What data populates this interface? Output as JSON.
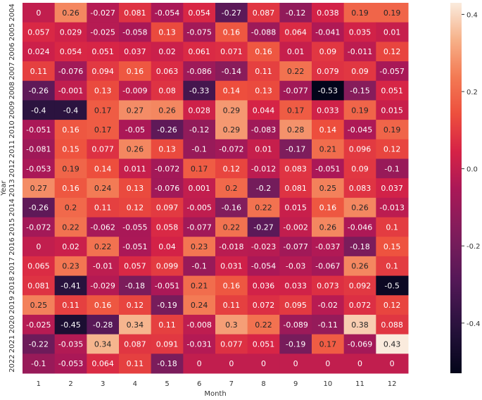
{
  "chart_data": {
    "type": "heatmap",
    "title": "",
    "xlabel": "Month",
    "ylabel": "Year",
    "x_categories": [
      "1",
      "2",
      "3",
      "4",
      "5",
      "6",
      "7",
      "8",
      "9",
      "10",
      "11",
      "12"
    ],
    "y_categories": [
      "2004",
      "2005",
      "2006",
      "2007",
      "2008",
      "2009",
      "2010",
      "2011",
      "2012",
      "2013",
      "2014",
      "2015",
      "2016",
      "2017",
      "2018",
      "2019",
      "2020",
      "2021",
      "2022"
    ],
    "values": [
      [
        "0",
        "0.26",
        "-0.027",
        "0.081",
        "-0.054",
        "0.054",
        "-0.27",
        "0.087",
        "-0.12",
        "0.038",
        "0.19",
        "0.19"
      ],
      [
        "0.057",
        "0.029",
        "-0.025",
        "-0.058",
        "0.13",
        "-0.075",
        "0.16",
        "-0.088",
        "0.064",
        "-0.041",
        "0.035",
        "0.01"
      ],
      [
        "0.024",
        "0.054",
        "0.051",
        "0.037",
        "0.02",
        "0.061",
        "0.071",
        "0.16",
        "0.01",
        "0.09",
        "-0.011",
        "0.12"
      ],
      [
        "0.11",
        "-0.076",
        "0.094",
        "0.16",
        "0.063",
        "-0.086",
        "-0.14",
        "0.11",
        "0.22",
        "0.079",
        "0.09",
        "-0.057"
      ],
      [
        "-0.26",
        "-0.001",
        "0.13",
        "-0.009",
        "0.08",
        "-0.33",
        "0.14",
        "0.13",
        "-0.077",
        "-0.53",
        "-0.15",
        "0.051"
      ],
      [
        "-0.4",
        "-0.4",
        "0.17",
        "0.27",
        "0.26",
        "0.028",
        "0.29",
        "0.044",
        "0.17",
        "0.033",
        "0.19",
        "0.015"
      ],
      [
        "-0.051",
        "0.16",
        "0.17",
        "-0.05",
        "-0.26",
        "-0.12",
        "0.29",
        "-0.083",
        "0.28",
        "0.14",
        "-0.045",
        "0.19"
      ],
      [
        "-0.081",
        "0.15",
        "0.077",
        "0.26",
        "0.13",
        "-0.1",
        "-0.072",
        "0.01",
        "-0.17",
        "0.21",
        "0.096",
        "0.12"
      ],
      [
        "-0.053",
        "0.19",
        "0.14",
        "0.011",
        "-0.072",
        "0.17",
        "0.12",
        "-0.012",
        "0.083",
        "-0.051",
        "0.09",
        "-0.1"
      ],
      [
        "0.27",
        "0.16",
        "0.24",
        "0.13",
        "-0.076",
        "0.001",
        "0.2",
        "-0.2",
        "0.081",
        "0.25",
        "0.083",
        "0.037"
      ],
      [
        "-0.26",
        "0.2",
        "0.11",
        "0.12",
        "0.097",
        "-0.005",
        "-0.16",
        "0.22",
        "0.015",
        "0.16",
        "0.26",
        "-0.013"
      ],
      [
        "-0.072",
        "0.22",
        "-0.062",
        "-0.055",
        "0.058",
        "-0.077",
        "0.22",
        "-0.27",
        "-0.002",
        "0.26",
        "-0.046",
        "0.1"
      ],
      [
        "0",
        "0.02",
        "0.22",
        "-0.051",
        "0.04",
        "0.23",
        "-0.018",
        "-0.023",
        "-0.077",
        "-0.037",
        "-0.18",
        "0.15"
      ],
      [
        "0.065",
        "0.23",
        "-0.01",
        "0.057",
        "0.099",
        "-0.1",
        "0.031",
        "-0.054",
        "-0.03",
        "-0.067",
        "0.26",
        "0.1"
      ],
      [
        "0.081",
        "-0.41",
        "-0.029",
        "-0.18",
        "-0.051",
        "0.21",
        "0.16",
        "0.036",
        "0.033",
        "0.073",
        "0.092",
        "-0.5"
      ],
      [
        "0.25",
        "0.11",
        "0.16",
        "0.12",
        "-0.19",
        "0.24",
        "0.11",
        "0.072",
        "0.095",
        "-0.02",
        "0.072",
        "0.12"
      ],
      [
        "-0.025",
        "-0.45",
        "-0.28",
        "0.34",
        "0.11",
        "-0.008",
        "0.3",
        "0.22",
        "-0.089",
        "-0.11",
        "0.38",
        "0.088"
      ],
      [
        "-0.22",
        "-0.035",
        "0.34",
        "0.087",
        "0.091",
        "-0.031",
        "0.077",
        "0.051",
        "-0.19",
        "0.17",
        "-0.069",
        "0.43"
      ],
      [
        "-0.1",
        "-0.053",
        "0.064",
        "0.11",
        "-0.18",
        "0",
        "0",
        "0",
        "0",
        "0",
        "0",
        "0"
      ]
    ],
    "colorbar": {
      "range": [
        -0.53,
        0.43
      ],
      "ticks": [
        "0.4",
        "0.2",
        "0.0",
        "-0.2",
        "-0.4"
      ],
      "colormap": "rocket",
      "low_color": "#03051a",
      "high_color": "#faebdd"
    },
    "grid": false
  }
}
